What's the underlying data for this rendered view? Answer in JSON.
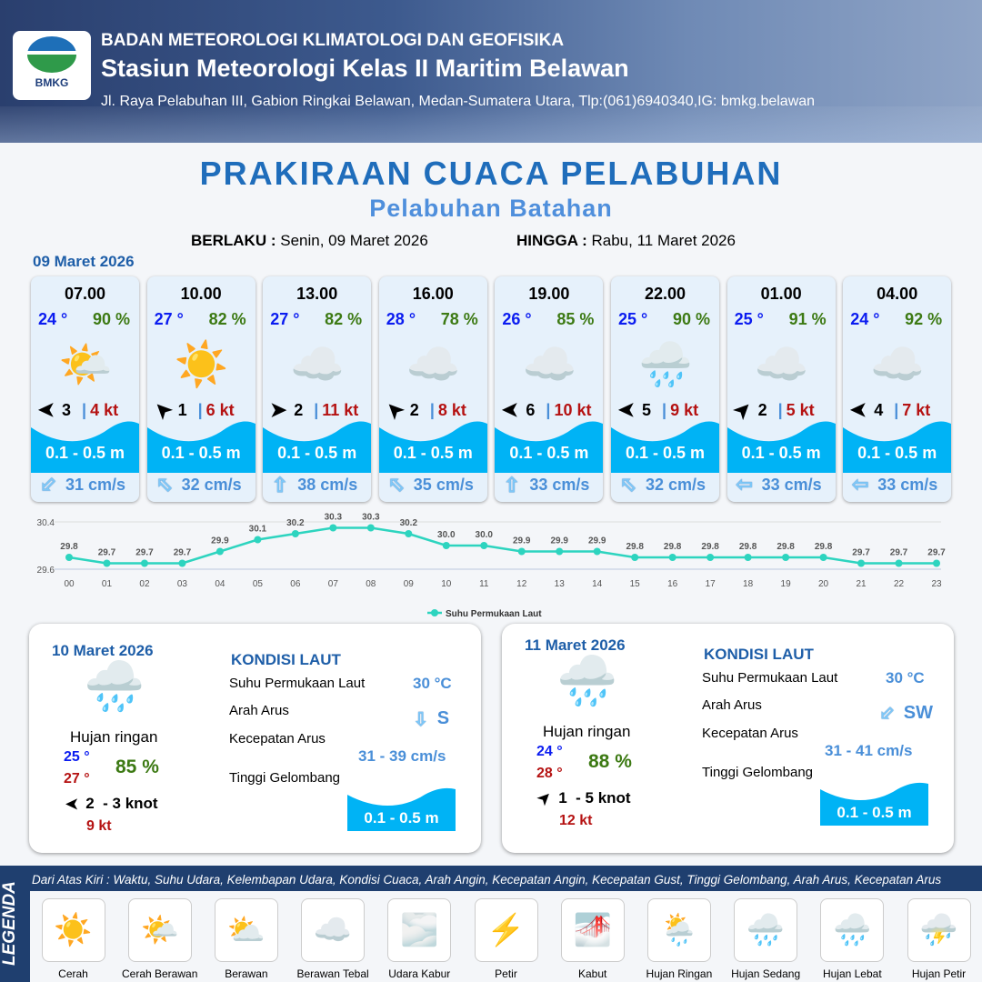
{
  "header": {
    "org": "BADAN METEOROLOGI KLIMATOLOGI DAN GEOFISIKA",
    "station": "Stasiun Meteorologi Kelas II Maritim Belawan",
    "address": "Jl. Raya Pelabuhan III, Gabion Ringkai Belawan, Medan-Sumatera Utara, Tlp:(061)6940340,IG: bmkg.belawan",
    "logo_text": "BMKG"
  },
  "title": "PRAKIRAAN CUACA PELABUHAN",
  "subtitle": "Pelabuhan Batahan",
  "validity": {
    "from_label": "BERLAKU :",
    "from": "Senin, 09 Maret 2026",
    "to_label": "HINGGA :",
    "to": "Rabu, 11 Maret 2026"
  },
  "day1": {
    "date": "09 Maret 2026",
    "cards": [
      {
        "time": "07.00",
        "temp": "24 °",
        "hum": "90 %",
        "weather": "cerah-berawan",
        "wind_dir": "W",
        "wind": "3",
        "gust": "4 kt",
        "wave": "0.1 - 0.5 m",
        "current_dir": "SW",
        "current": "31 cm/s"
      },
      {
        "time": "10.00",
        "temp": "27 °",
        "hum": "82 %",
        "weather": "cerah",
        "wind_dir": "NW",
        "wind": "1",
        "gust": "6 kt",
        "wave": "0.1 - 0.5 m",
        "current_dir": "NW",
        "current": "32 cm/s"
      },
      {
        "time": "13.00",
        "temp": "27 °",
        "hum": "82 %",
        "weather": "berawan-tebal",
        "wind_dir": "E",
        "wind": "2",
        "gust": "11 kt",
        "wave": "0.1 - 0.5 m",
        "current_dir": "N",
        "current": "38 cm/s"
      },
      {
        "time": "16.00",
        "temp": "28 °",
        "hum": "78 %",
        "weather": "berawan-tebal",
        "wind_dir": "NW",
        "wind": "2",
        "gust": "8 kt",
        "wave": "0.1 - 0.5 m",
        "current_dir": "NW",
        "current": "35 cm/s"
      },
      {
        "time": "19.00",
        "temp": "26 °",
        "hum": "85 %",
        "weather": "berawan-tebal",
        "wind_dir": "W",
        "wind": "6",
        "gust": "10 kt",
        "wave": "0.1 - 0.5 m",
        "current_dir": "N",
        "current": "33 cm/s"
      },
      {
        "time": "22.00",
        "temp": "25 °",
        "hum": "90 %",
        "weather": "hujan-ringan",
        "wind_dir": "W",
        "wind": "5",
        "gust": "9 kt",
        "wave": "0.1 - 0.5 m",
        "current_dir": "NW",
        "current": "32 cm/s"
      },
      {
        "time": "01.00",
        "temp": "25 °",
        "hum": "91 %",
        "weather": "berawan-tebal",
        "wind_dir": "NE",
        "wind": "2",
        "gust": "5 kt",
        "wave": "0.1 - 0.5 m",
        "current_dir": "W",
        "current": "33 cm/s"
      },
      {
        "time": "04.00",
        "temp": "24 °",
        "hum": "92 %",
        "weather": "berawan-tebal",
        "wind_dir": "W",
        "wind": "4",
        "gust": "7 kt",
        "wave": "0.1 - 0.5 m",
        "current_dir": "W",
        "current": "33 cm/s"
      }
    ]
  },
  "chart_data": {
    "type": "line",
    "categories": [
      "00",
      "01",
      "02",
      "03",
      "04",
      "05",
      "06",
      "07",
      "08",
      "09",
      "10",
      "11",
      "12",
      "13",
      "14",
      "15",
      "16",
      "17",
      "18",
      "19",
      "20",
      "21",
      "22",
      "23"
    ],
    "series": [
      {
        "name": "Suhu Permukaan Laut",
        "values": [
          29.8,
          29.7,
          29.7,
          29.7,
          29.9,
          30.1,
          30.2,
          30.3,
          30.3,
          30.2,
          30.0,
          30.0,
          29.9,
          29.9,
          29.9,
          29.8,
          29.8,
          29.8,
          29.8,
          29.8,
          29.8,
          29.7,
          29.7,
          29.7
        ],
        "color": "#2dd4bf"
      }
    ],
    "y_ticks": [
      "30.4",
      "29.6"
    ],
    "ylim": [
      29.6,
      30.4
    ],
    "legend": "bottom",
    "grid": true
  },
  "panels": [
    {
      "date": "10 Maret 2026",
      "weather": "Hujan ringan",
      "temp_min": "25 °",
      "temp_max": "27 °",
      "hum": "85 %",
      "wind_dir": "W",
      "wind": "2  - 3 knot",
      "gust": "9 kt",
      "kondisi": "KONDISI LAUT",
      "sst_label": "Suhu Permukaan Laut",
      "sst": "30 °C",
      "dir_label": "Arah Arus",
      "dir": "S",
      "speed_label": "Kecepatan Arus",
      "speed": "31 - 39 cm/s",
      "wave_label": "Tinggi Gelombang",
      "wave": "0.1 - 0.5 m"
    },
    {
      "date": "11 Maret 2026",
      "weather": "Hujan ringan",
      "temp_min": "24 °",
      "temp_max": "28 °",
      "hum": "88 %",
      "wind_dir": "NE",
      "wind": "1  - 5 knot",
      "gust": "12 kt",
      "kondisi": "KONDISI LAUT",
      "sst_label": "Suhu Permukaan Laut",
      "sst": "30 °C",
      "dir_label": "Arah Arus",
      "dir": "SW",
      "speed_label": "Kecepatan Arus",
      "speed": "31  - 41 cm/s",
      "wave_label": "Tinggi Gelombang",
      "wave": "0.1 - 0.5 m"
    }
  ],
  "legend": {
    "title": "LEGENDA",
    "desc": "Dari Atas Kiri : Waktu, Suhu Udara, Kelembapan Udara, Kondisi Cuaca, Arah Angin, Kecepatan Angin, Kecepatan Gust, Tinggi Gelombang, Arah Arus, Kecepatan Arus",
    "items": [
      "Cerah",
      "Cerah Berawan",
      "Berawan",
      "Berawan Tebal",
      "Udara Kabur",
      "Petir",
      "Kabut",
      "Hujan Ringan",
      "Hujan Sedang",
      "Hujan Lebat",
      "Hujan Petir"
    ]
  }
}
